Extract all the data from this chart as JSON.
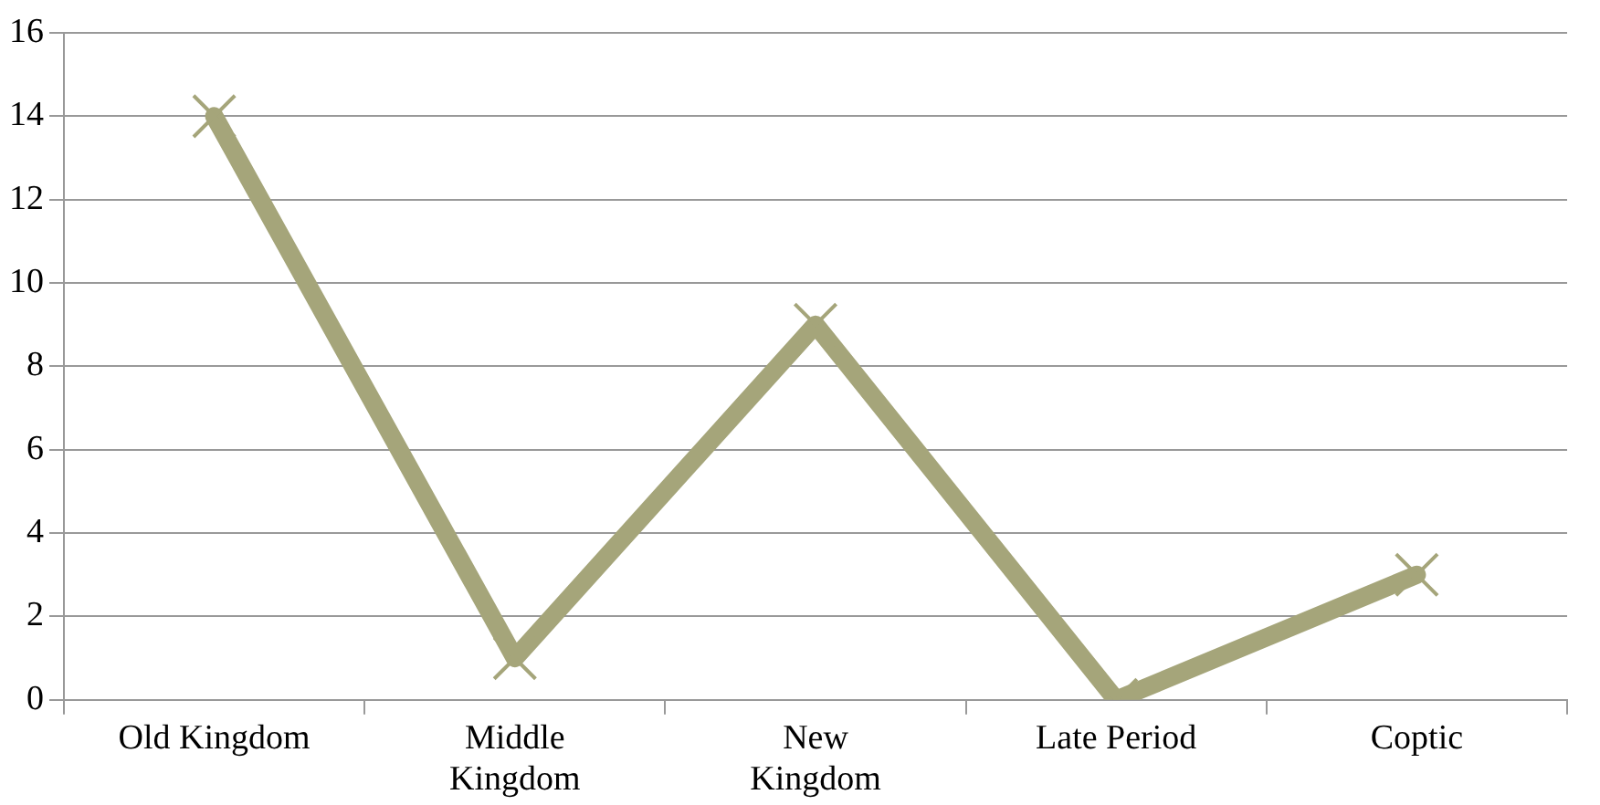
{
  "chart_data": {
    "type": "line",
    "categories": [
      "Old Kingdom",
      "Middle\nKingdom",
      "New\nKingdom",
      "Late Period",
      "Coptic"
    ],
    "series": [
      {
        "color": "#a5a57a",
        "values": [
          14,
          1,
          9,
          0,
          3
        ]
      }
    ],
    "ylim": [
      0,
      16
    ],
    "yticks": [
      0,
      2,
      4,
      6,
      8,
      10,
      12,
      14,
      16
    ],
    "grid": "y",
    "legend": false,
    "marker": "cross",
    "line_style": "solid"
  }
}
